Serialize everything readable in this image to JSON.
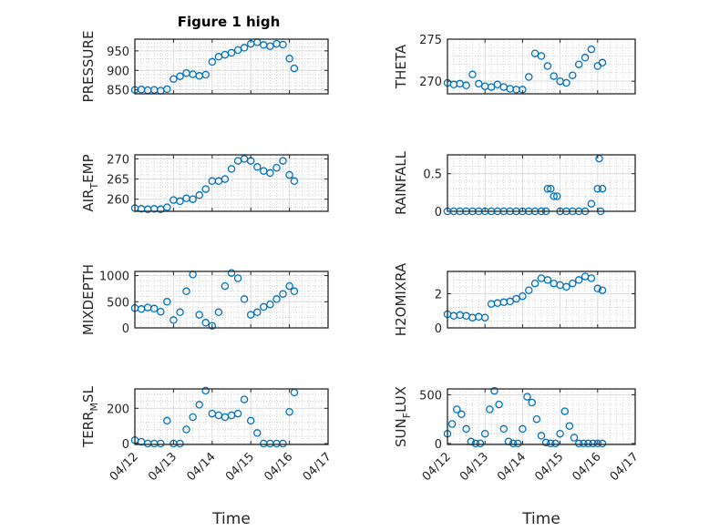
{
  "figure": {
    "title": "Figure 1 high",
    "xlabel": "Time",
    "date_ticks": [
      "04/12",
      "04/13",
      "04/14",
      "04/15",
      "04/16",
      "04/17"
    ]
  },
  "colors": {
    "marker": "#0072BD",
    "grid_major": "#dcdcdc",
    "grid_minor": "#c8c8c8",
    "axes": "#262626"
  },
  "chart_data": [
    {
      "type": "scatter",
      "ylabel": "PRESSURE",
      "ylabel_sub": "",
      "ylabel_after": "",
      "xlim": [
        "04/12",
        "04/17"
      ],
      "ylim": [
        840,
        980
      ],
      "yticks": [
        850,
        900,
        950
      ],
      "x": [
        "04/12 00:00",
        "04/12 04:00",
        "04/12 08:00",
        "04/12 12:00",
        "04/12 16:00",
        "04/12 20:00",
        "04/13 00:00",
        "04/13 04:00",
        "04/13 08:00",
        "04/13 12:00",
        "04/13 16:00",
        "04/13 20:00",
        "04/14 00:00",
        "04/14 04:00",
        "04/14 08:00",
        "04/14 12:00",
        "04/14 16:00",
        "04/14 20:00",
        "04/15 00:00",
        "04/15 04:00",
        "04/15 08:00",
        "04/15 12:00",
        "04/15 16:00",
        "04/15 20:00",
        "04/16 00:00",
        "04/16 03:00"
      ],
      "y": [
        850,
        851,
        849,
        850,
        848,
        852,
        878,
        885,
        893,
        890,
        886,
        889,
        922,
        935,
        940,
        945,
        952,
        958,
        968,
        972,
        965,
        962,
        968,
        966,
        930,
        905
      ]
    },
    {
      "type": "scatter",
      "ylabel": "THETA",
      "ylabel_sub": "",
      "ylabel_after": "",
      "xlim": [
        "04/12",
        "04/17"
      ],
      "ylim": [
        268.5,
        275
      ],
      "yticks": [
        270,
        275
      ],
      "x": [
        "04/12 00:00",
        "04/12 04:00",
        "04/12 08:00",
        "04/12 12:00",
        "04/12 16:00",
        "04/12 20:00",
        "04/13 00:00",
        "04/13 04:00",
        "04/13 08:00",
        "04/13 12:00",
        "04/13 16:00",
        "04/13 20:00",
        "04/14 00:00",
        "04/14 04:00",
        "04/14 08:00",
        "04/14 12:00",
        "04/14 16:00",
        "04/14 20:00",
        "04/15 00:00",
        "04/15 04:00",
        "04/15 08:00",
        "04/15 12:00",
        "04/15 16:00",
        "04/15 20:00",
        "04/16 00:00",
        "04/16 03:00"
      ],
      "y": [
        269.8,
        269.6,
        269.7,
        269.5,
        270.8,
        269.7,
        269.4,
        269.3,
        269.6,
        269.3,
        269.1,
        269.0,
        269.0,
        270.5,
        273.3,
        273.0,
        271.8,
        270.6,
        270.0,
        269.8,
        270.7,
        272.0,
        272.8,
        273.8,
        271.8,
        272.2
      ]
    },
    {
      "type": "scatter",
      "ylabel": "AIR",
      "ylabel_sub": "T",
      "ylabel_after": "EMP",
      "xlim": [
        "04/12",
        "04/17"
      ],
      "ylim": [
        257,
        271
      ],
      "yticks": [
        260,
        265,
        270
      ],
      "x": [
        "04/12 00:00",
        "04/12 04:00",
        "04/12 08:00",
        "04/12 12:00",
        "04/12 16:00",
        "04/12 20:00",
        "04/13 00:00",
        "04/13 04:00",
        "04/13 08:00",
        "04/13 12:00",
        "04/13 16:00",
        "04/13 20:00",
        "04/14 00:00",
        "04/14 04:00",
        "04/14 08:00",
        "04/14 12:00",
        "04/14 16:00",
        "04/14 20:00",
        "04/15 00:00",
        "04/15 04:00",
        "04/15 08:00",
        "04/15 12:00",
        "04/15 16:00",
        "04/15 20:00",
        "04/16 00:00",
        "04/16 03:00"
      ],
      "y": [
        257.8,
        257.6,
        257.5,
        257.6,
        257.5,
        258.0,
        259.8,
        259.5,
        260.2,
        260.0,
        261.0,
        262.5,
        264.5,
        264.5,
        265.0,
        267.5,
        269.5,
        270.0,
        269.5,
        268.0,
        267.0,
        266.5,
        267.8,
        269.5,
        266.0,
        264.5
      ]
    },
    {
      "type": "scatter",
      "ylabel": "RAINFALL",
      "ylabel_sub": "",
      "ylabel_after": "",
      "xlim": [
        "04/12",
        "04/17"
      ],
      "ylim": [
        0,
        0.75
      ],
      "yticks": [
        0,
        0.5
      ],
      "x": [
        "04/12 00:00",
        "04/12 04:00",
        "04/12 08:00",
        "04/12 12:00",
        "04/12 16:00",
        "04/12 20:00",
        "04/13 00:00",
        "04/13 04:00",
        "04/13 08:00",
        "04/13 12:00",
        "04/13 16:00",
        "04/13 20:00",
        "04/14 00:00",
        "04/14 04:00",
        "04/14 08:00",
        "04/14 12:00",
        "04/14 15:00",
        "04/14 16:00",
        "04/14 18:00",
        "04/14 20:00",
        "04/14 22:00",
        "04/15 00:00",
        "04/15 04:00",
        "04/15 08:00",
        "04/15 12:00",
        "04/15 16:00",
        "04/15 20:00",
        "04/16 00:00",
        "04/16 01:00",
        "04/16 02:00",
        "04/16 03:00"
      ],
      "y": [
        0,
        0,
        0,
        0,
        0,
        0,
        0,
        0,
        0,
        0,
        0,
        0,
        0,
        0,
        0,
        0,
        0,
        0.3,
        0.3,
        0.2,
        0.2,
        0,
        0,
        0,
        0,
        0,
        0.1,
        0.3,
        0.7,
        0,
        0.3
      ]
    },
    {
      "type": "scatter",
      "ylabel": "MIXDEPTH",
      "ylabel_sub": "",
      "ylabel_after": "",
      "xlim": [
        "04/12",
        "04/17"
      ],
      "ylim": [
        0,
        1080
      ],
      "yticks": [
        0,
        500,
        1000
      ],
      "x": [
        "04/12 00:00",
        "04/12 04:00",
        "04/12 08:00",
        "04/12 12:00",
        "04/12 16:00",
        "04/12 20:00",
        "04/13 00:00",
        "04/13 04:00",
        "04/13 08:00",
        "04/13 12:00",
        "04/13 16:00",
        "04/13 20:00",
        "04/14 00:00",
        "04/14 04:00",
        "04/14 08:00",
        "04/14 12:00",
        "04/14 16:00",
        "04/14 20:00",
        "04/15 00:00",
        "04/15 04:00",
        "04/15 08:00",
        "04/15 12:00",
        "04/15 16:00",
        "04/15 20:00",
        "04/16 00:00",
        "04/16 03:00"
      ],
      "y": [
        380,
        360,
        390,
        370,
        310,
        500,
        150,
        300,
        700,
        1020,
        250,
        100,
        40,
        300,
        800,
        1050,
        950,
        550,
        250,
        300,
        400,
        450,
        550,
        650,
        800,
        700
      ]
    },
    {
      "type": "scatter",
      "ylabel": "H2OMIXRA",
      "ylabel_sub": "",
      "ylabel_after": "",
      "xlim": [
        "04/12",
        "04/17"
      ],
      "ylim": [
        0,
        3.3
      ],
      "yticks": [
        0,
        2
      ],
      "x": [
        "04/12 00:00",
        "04/12 04:00",
        "04/12 08:00",
        "04/12 12:00",
        "04/12 16:00",
        "04/12 20:00",
        "04/13 00:00",
        "04/13 04:00",
        "04/13 08:00",
        "04/13 12:00",
        "04/13 16:00",
        "04/13 20:00",
        "04/14 00:00",
        "04/14 04:00",
        "04/14 08:00",
        "04/14 12:00",
        "04/14 16:00",
        "04/14 20:00",
        "04/15 00:00",
        "04/15 04:00",
        "04/15 08:00",
        "04/15 12:00",
        "04/15 16:00",
        "04/15 20:00",
        "04/16 00:00",
        "04/16 03:00"
      ],
      "y": [
        0.8,
        0.7,
        0.75,
        0.7,
        0.6,
        0.65,
        0.6,
        1.4,
        1.45,
        1.5,
        1.55,
        1.7,
        1.85,
        2.2,
        2.6,
        2.9,
        2.8,
        2.6,
        2.5,
        2.4,
        2.6,
        2.8,
        3.0,
        2.9,
        2.3,
        2.2
      ]
    },
    {
      "type": "scatter",
      "ylabel": "TERR",
      "ylabel_sub": "M",
      "ylabel_after": "SL",
      "xlim": [
        "04/12",
        "04/17"
      ],
      "ylim": [
        -5,
        310
      ],
      "yticks": [
        0,
        200
      ],
      "x": [
        "04/12 00:00",
        "04/12 04:00",
        "04/12 08:00",
        "04/12 12:00",
        "04/12 16:00",
        "04/12 20:00",
        "04/13 00:00",
        "04/13 04:00",
        "04/13 08:00",
        "04/13 12:00",
        "04/13 16:00",
        "04/13 20:00",
        "04/14 00:00",
        "04/14 04:00",
        "04/14 08:00",
        "04/14 12:00",
        "04/14 16:00",
        "04/14 20:00",
        "04/15 00:00",
        "04/15 04:00",
        "04/15 08:00",
        "04/15 12:00",
        "04/15 16:00",
        "04/15 20:00",
        "04/16 00:00",
        "04/16 03:00"
      ],
      "y": [
        20,
        10,
        0,
        0,
        0,
        130,
        0,
        0,
        80,
        150,
        220,
        300,
        170,
        160,
        150,
        160,
        170,
        250,
        130,
        60,
        0,
        0,
        0,
        0,
        180,
        290
      ]
    },
    {
      "type": "scatter",
      "ylabel": "SUN",
      "ylabel_sub": "F",
      "ylabel_after": "LUX",
      "xlim": [
        "04/12",
        "04/17"
      ],
      "ylim": [
        -10,
        560
      ],
      "yticks": [
        0,
        500
      ],
      "x": [
        "04/12 00:00",
        "04/12 03:00",
        "04/12 06:00",
        "04/12 09:00",
        "04/12 12:00",
        "04/12 15:00",
        "04/12 18:00",
        "04/12 21:00",
        "04/13 00:00",
        "04/13 03:00",
        "04/13 06:00",
        "04/13 09:00",
        "04/13 12:00",
        "04/13 15:00",
        "04/13 18:00",
        "04/13 21:00",
        "04/14 00:00",
        "04/14 03:00",
        "04/14 06:00",
        "04/14 09:00",
        "04/14 12:00",
        "04/14 15:00",
        "04/14 18:00",
        "04/14 21:00",
        "04/15 00:00",
        "04/15 03:00",
        "04/15 06:00",
        "04/15 09:00",
        "04/15 12:00",
        "04/15 15:00",
        "04/15 18:00",
        "04/15 21:00",
        "04/16 00:00",
        "04/16 03:00"
      ],
      "y": [
        100,
        200,
        350,
        300,
        150,
        20,
        0,
        0,
        100,
        350,
        540,
        400,
        150,
        20,
        0,
        0,
        150,
        480,
        420,
        250,
        80,
        10,
        0,
        0,
        100,
        330,
        180,
        60,
        0,
        0,
        0,
        0,
        0,
        0
      ]
    }
  ]
}
